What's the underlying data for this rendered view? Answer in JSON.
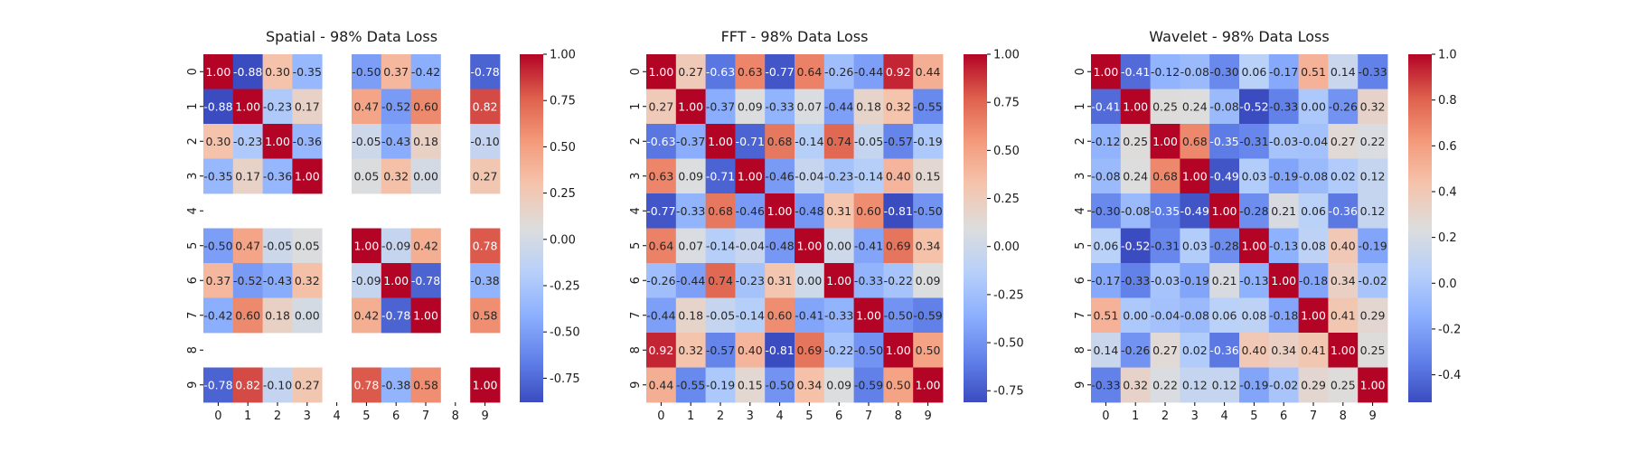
{
  "chart_data": [
    {
      "type": "heatmap",
      "title": "Spatial - 98% Data Loss",
      "categories": [
        "0",
        "1",
        "2",
        "3",
        "4",
        "5",
        "6",
        "7",
        "8",
        "9"
      ],
      "colorbar_ticks": [
        "-0.75",
        "-0.50",
        "-0.25",
        "0.00",
        "0.25",
        "0.50",
        "0.75",
        "1.00"
      ],
      "vmin": -0.88,
      "vmax": 1.0,
      "colormap": "coolwarm",
      "values": [
        [
          1.0,
          -0.88,
          0.3,
          -0.35,
          null,
          -0.5,
          0.37,
          -0.42,
          null,
          -0.78
        ],
        [
          -0.88,
          1.0,
          -0.23,
          0.17,
          null,
          0.47,
          -0.52,
          0.6,
          null,
          0.82
        ],
        [
          0.3,
          -0.23,
          1.0,
          -0.36,
          null,
          -0.05,
          -0.43,
          0.18,
          null,
          -0.1
        ],
        [
          -0.35,
          0.17,
          -0.36,
          1.0,
          null,
          0.05,
          0.32,
          -0.0,
          null,
          0.27
        ],
        [
          null,
          null,
          null,
          null,
          null,
          null,
          null,
          null,
          null,
          null
        ],
        [
          -0.5,
          0.47,
          -0.05,
          0.05,
          null,
          1.0,
          -0.09,
          0.42,
          null,
          0.78
        ],
        [
          0.37,
          -0.52,
          -0.43,
          0.32,
          null,
          -0.09,
          1.0,
          -0.78,
          null,
          -0.38
        ],
        [
          -0.42,
          0.6,
          0.18,
          -0.0,
          null,
          0.42,
          -0.78,
          1.0,
          null,
          0.58
        ],
        [
          null,
          null,
          null,
          null,
          null,
          null,
          null,
          null,
          null,
          null
        ],
        [
          -0.78,
          0.82,
          -0.1,
          0.27,
          null,
          0.78,
          -0.38,
          0.58,
          null,
          1.0
        ]
      ]
    },
    {
      "type": "heatmap",
      "title": "FFT - 98% Data Loss",
      "categories": [
        "0",
        "1",
        "2",
        "3",
        "4",
        "5",
        "6",
        "7",
        "8",
        "9"
      ],
      "colorbar_ticks": [
        "-0.75",
        "-0.50",
        "-0.25",
        "0.00",
        "0.25",
        "0.50",
        "0.75",
        "1.00"
      ],
      "vmin": -0.81,
      "vmax": 1.0,
      "colormap": "coolwarm",
      "values": [
        [
          1.0,
          0.27,
          -0.63,
          0.63,
          -0.77,
          0.64,
          -0.26,
          -0.44,
          0.92,
          0.44
        ],
        [
          0.27,
          1.0,
          -0.37,
          0.09,
          -0.33,
          0.07,
          -0.44,
          0.18,
          0.32,
          -0.55
        ],
        [
          -0.63,
          -0.37,
          1.0,
          -0.71,
          0.68,
          -0.14,
          0.74,
          -0.05,
          -0.57,
          -0.19
        ],
        [
          0.63,
          0.09,
          -0.71,
          1.0,
          -0.46,
          -0.04,
          -0.23,
          -0.14,
          0.4,
          0.15
        ],
        [
          -0.77,
          -0.33,
          0.68,
          -0.46,
          1.0,
          -0.48,
          0.31,
          0.6,
          -0.81,
          -0.5
        ],
        [
          0.64,
          0.07,
          -0.14,
          -0.04,
          -0.48,
          1.0,
          0.0,
          -0.41,
          0.69,
          0.34
        ],
        [
          -0.26,
          -0.44,
          0.74,
          -0.23,
          0.31,
          0.0,
          1.0,
          -0.33,
          -0.22,
          0.09
        ],
        [
          -0.44,
          0.18,
          -0.05,
          -0.14,
          0.6,
          -0.41,
          -0.33,
          1.0,
          -0.5,
          -0.59
        ],
        [
          0.92,
          0.32,
          -0.57,
          0.4,
          -0.81,
          0.69,
          -0.22,
          -0.5,
          1.0,
          0.5
        ],
        [
          0.44,
          -0.55,
          -0.19,
          0.15,
          -0.5,
          0.34,
          0.09,
          -0.59,
          0.5,
          1.0
        ]
      ]
    },
    {
      "type": "heatmap",
      "title": "Wavelet - 98% Data Loss",
      "categories": [
        "0",
        "1",
        "2",
        "3",
        "4",
        "5",
        "6",
        "7",
        "8",
        "9"
      ],
      "colorbar_ticks": [
        "-0.4",
        "-0.2",
        "0.0",
        "0.2",
        "0.4",
        "0.6",
        "0.8",
        "1.0"
      ],
      "vmin": -0.52,
      "vmax": 1.0,
      "colormap": "coolwarm",
      "values": [
        [
          1.0,
          -0.41,
          -0.12,
          -0.08,
          -0.3,
          0.06,
          -0.17,
          0.51,
          0.14,
          -0.33
        ],
        [
          -0.41,
          1.0,
          0.25,
          0.24,
          -0.08,
          -0.52,
          -0.33,
          -0.0,
          -0.26,
          0.32
        ],
        [
          -0.12,
          0.25,
          1.0,
          0.68,
          -0.35,
          -0.31,
          -0.03,
          -0.04,
          0.27,
          0.22
        ],
        [
          -0.08,
          0.24,
          0.68,
          1.0,
          -0.49,
          0.03,
          -0.19,
          -0.08,
          0.02,
          0.12
        ],
        [
          -0.3,
          -0.08,
          -0.35,
          -0.49,
          1.0,
          -0.28,
          0.21,
          0.06,
          -0.36,
          0.12
        ],
        [
          0.06,
          -0.52,
          -0.31,
          0.03,
          -0.28,
          1.0,
          -0.13,
          0.08,
          0.4,
          -0.19
        ],
        [
          -0.17,
          -0.33,
          -0.03,
          -0.19,
          0.21,
          -0.13,
          1.0,
          -0.18,
          0.34,
          -0.02
        ],
        [
          0.51,
          -0.0,
          -0.04,
          -0.08,
          0.06,
          0.08,
          -0.18,
          1.0,
          0.41,
          0.29
        ],
        [
          0.14,
          -0.26,
          0.27,
          0.02,
          -0.36,
          0.4,
          0.34,
          0.41,
          1.0,
          0.25
        ],
        [
          -0.33,
          0.32,
          0.22,
          0.12,
          0.12,
          -0.19,
          -0.02,
          0.29,
          0.25,
          1.0
        ]
      ]
    }
  ]
}
